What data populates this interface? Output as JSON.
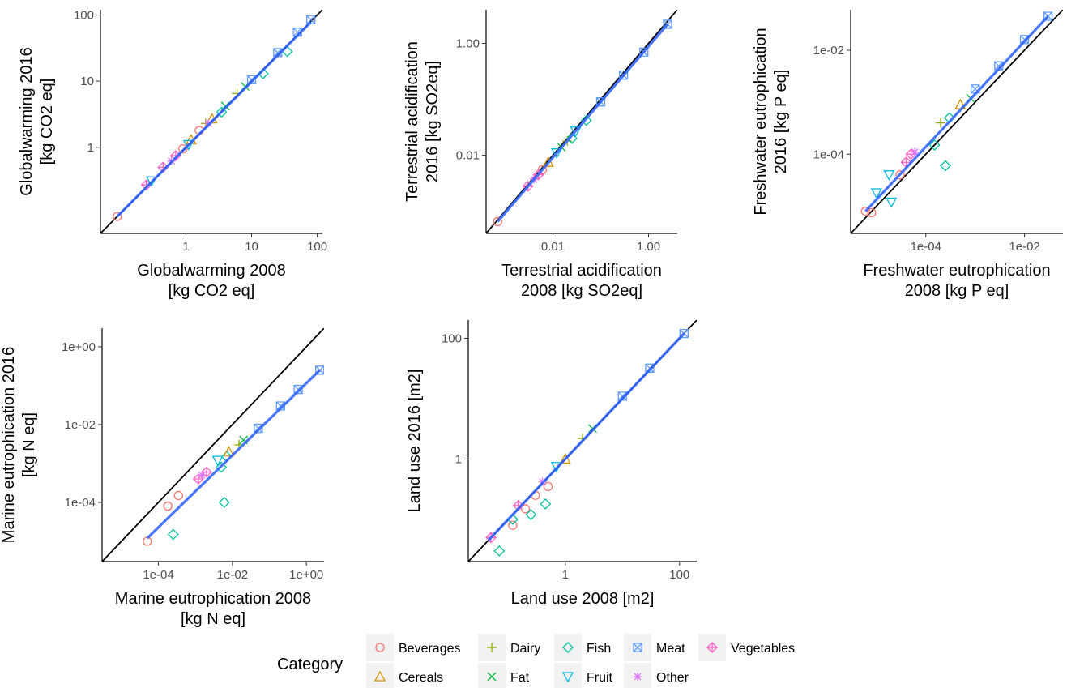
{
  "chart_data": [
    {
      "type": "scatter",
      "xlabel": [
        "Globalwarming 2008",
        "[kg CO2 eq]"
      ],
      "ylabel": [
        "Globalwarming 2016",
        "[kg CO2 eq]"
      ],
      "scale": "log10",
      "xlim": [
        0.05,
        120
      ],
      "ylim": [
        0.05,
        120
      ],
      "xticks": [
        {
          "value": 1,
          "label": "1"
        },
        {
          "value": 10,
          "label": "10"
        },
        {
          "value": 100,
          "label": "100"
        }
      ],
      "yticks": [
        {
          "value": 1,
          "label": "1"
        },
        {
          "value": 10,
          "label": "10"
        },
        {
          "value": 100,
          "label": "100"
        }
      ],
      "fit_line": {
        "from": [
          0.09,
          0.09
        ],
        "to": [
          80,
          78
        ]
      },
      "identity_line": true,
      "points": [
        {
          "category": "Beverages",
          "x": 0.09,
          "y": 0.09
        },
        {
          "category": "Beverages",
          "x": 0.9,
          "y": 0.95
        },
        {
          "category": "Beverages",
          "x": 1.6,
          "y": 1.8
        },
        {
          "category": "Vegetables",
          "x": 0.25,
          "y": 0.27
        },
        {
          "category": "Vegetables",
          "x": 0.45,
          "y": 0.5
        },
        {
          "category": "Vegetables",
          "x": 0.7,
          "y": 0.75
        },
        {
          "category": "Cereals",
          "x": 1.2,
          "y": 1.3
        },
        {
          "category": "Cereals",
          "x": 2.5,
          "y": 2.7
        },
        {
          "category": "Dairy",
          "x": 2.0,
          "y": 2.3
        },
        {
          "category": "Dairy",
          "x": 6.0,
          "y": 6.5
        },
        {
          "category": "Fat",
          "x": 4.0,
          "y": 4.2
        },
        {
          "category": "Fat",
          "x": 8.0,
          "y": 8.3
        },
        {
          "category": "Fish",
          "x": 3.5,
          "y": 3.4
        },
        {
          "category": "Fish",
          "x": 15,
          "y": 13
        },
        {
          "category": "Fish",
          "x": 35,
          "y": 28
        },
        {
          "category": "Fruit",
          "x": 0.3,
          "y": 0.31
        },
        {
          "category": "Fruit",
          "x": 1.1,
          "y": 1.1
        },
        {
          "category": "Meat",
          "x": 10,
          "y": 10.5
        },
        {
          "category": "Meat",
          "x": 25,
          "y": 27
        },
        {
          "category": "Meat",
          "x": 50,
          "y": 55
        },
        {
          "category": "Meat",
          "x": 80,
          "y": 85
        },
        {
          "category": "Other",
          "x": 0.6,
          "y": 0.62
        },
        {
          "category": "Other",
          "x": 2.2,
          "y": 2.3
        }
      ]
    },
    {
      "type": "scatter",
      "xlabel": [
        "Terrestrial acidification",
        "2008 [kg SO2eq]"
      ],
      "ylabel": [
        "Terrestrial acidification",
        "2016 [kg SO2eq]"
      ],
      "scale": "log10",
      "xlim": [
        0.0004,
        4
      ],
      "ylim": [
        0.0004,
        4
      ],
      "xticks": [
        {
          "value": 0.01,
          "label": "0.01"
        },
        {
          "value": 1,
          "label": "1.00"
        }
      ],
      "yticks": [
        {
          "value": 0.01,
          "label": "0.01"
        },
        {
          "value": 1,
          "label": "1.00"
        }
      ],
      "fit_line": {
        "from": [
          0.0007,
          0.00065
        ],
        "to": [
          2.5,
          2.2
        ]
      },
      "identity_line": true,
      "points": [
        {
          "category": "Beverages",
          "x": 0.0007,
          "y": 0.00065
        },
        {
          "category": "Beverages",
          "x": 0.006,
          "y": 0.0055
        },
        {
          "category": "Vegetables",
          "x": 0.003,
          "y": 0.0028
        },
        {
          "category": "Vegetables",
          "x": 0.005,
          "y": 0.0045
        },
        {
          "category": "Other",
          "x": 0.004,
          "y": 0.0037
        },
        {
          "category": "Cereals",
          "x": 0.008,
          "y": 0.0075
        },
        {
          "category": "Dairy",
          "x": 0.02,
          "y": 0.018
        },
        {
          "category": "Fat",
          "x": 0.015,
          "y": 0.014
        },
        {
          "category": "Fish",
          "x": 0.025,
          "y": 0.02
        },
        {
          "category": "Fish",
          "x": 0.05,
          "y": 0.042
        },
        {
          "category": "Fruit",
          "x": 0.012,
          "y": 0.011
        },
        {
          "category": "Fruit",
          "x": 0.03,
          "y": 0.027
        },
        {
          "category": "Meat",
          "x": 0.1,
          "y": 0.09
        },
        {
          "category": "Meat",
          "x": 0.3,
          "y": 0.27
        },
        {
          "category": "Meat",
          "x": 0.8,
          "y": 0.7
        },
        {
          "category": "Meat",
          "x": 2.5,
          "y": 2.2
        }
      ]
    },
    {
      "type": "scatter",
      "xlabel": [
        "Freshwater eutrophication",
        "2008 [kg P eq]"
      ],
      "ylabel": [
        "Freshwater eutrophication",
        "2016 [kg P eq]"
      ],
      "scale": "log10",
      "xlim": [
        3e-06,
        0.06
      ],
      "ylim": [
        3e-06,
        0.06
      ],
      "xticks": [
        {
          "value": 0.0001,
          "label": "1e-04"
        },
        {
          "value": 0.01,
          "label": "1e-02"
        }
      ],
      "yticks": [
        {
          "value": 0.0001,
          "label": "1e-04"
        },
        {
          "value": 0.01,
          "label": "1e-02"
        }
      ],
      "fit_line": {
        "from": [
          6e-06,
          8e-06
        ],
        "to": [
          0.03,
          0.045
        ]
      },
      "identity_line": true,
      "points": [
        {
          "category": "Beverages",
          "x": 6e-06,
          "y": 8e-06
        },
        {
          "category": "Beverages",
          "x": 8e-06,
          "y": 7.5e-06
        },
        {
          "category": "Beverages",
          "x": 3e-05,
          "y": 4e-05
        },
        {
          "category": "Fruit",
          "x": 2e-05,
          "y": 1.2e-05
        },
        {
          "category": "Fruit",
          "x": 1e-05,
          "y": 1.8e-05
        },
        {
          "category": "Fruit",
          "x": 1.8e-05,
          "y": 4e-05
        },
        {
          "category": "Fish",
          "x": 0.00015,
          "y": 0.00015
        },
        {
          "category": "Fish",
          "x": 0.00025,
          "y": 6e-05
        },
        {
          "category": "Fish",
          "x": 0.0003,
          "y": 0.0005
        },
        {
          "category": "Vegetables",
          "x": 5e-05,
          "y": 0.0001
        },
        {
          "category": "Vegetables",
          "x": 4e-05,
          "y": 7e-05
        },
        {
          "category": "Dairy",
          "x": 0.0002,
          "y": 0.0004
        },
        {
          "category": "Cereals",
          "x": 0.0005,
          "y": 0.0009
        },
        {
          "category": "Fat",
          "x": 0.0008,
          "y": 0.0012
        },
        {
          "category": "Other",
          "x": 6e-05,
          "y": 0.00011
        },
        {
          "category": "Meat",
          "x": 0.001,
          "y": 0.0018
        },
        {
          "category": "Meat",
          "x": 0.003,
          "y": 0.005
        },
        {
          "category": "Meat",
          "x": 0.01,
          "y": 0.016
        },
        {
          "category": "Meat",
          "x": 0.03,
          "y": 0.045
        }
      ]
    },
    {
      "type": "scatter",
      "xlabel": [
        "Marine eutrophication 2008",
        "[kg N eq]"
      ],
      "ylabel": [
        "Marine eutrophication 2016",
        "[kg N eq]"
      ],
      "scale": "log10",
      "xlim": [
        3e-06,
        3
      ],
      "ylim": [
        3e-06,
        3
      ],
      "xticks": [
        {
          "value": 0.0001,
          "label": "1e-04"
        },
        {
          "value": 0.01,
          "label": "1e-02"
        },
        {
          "value": 1,
          "label": "1e+00"
        }
      ],
      "yticks": [
        {
          "value": 0.0001,
          "label": "1e-04"
        },
        {
          "value": 0.01,
          "label": "1e-02"
        },
        {
          "value": 1,
          "label": "1e+00"
        }
      ],
      "fit_line": {
        "from": [
          5e-05,
          1.2e-05
        ],
        "to": [
          2.3,
          0.25
        ]
      },
      "identity_line": true,
      "points": [
        {
          "category": "Beverages",
          "x": 5e-05,
          "y": 1e-05
        },
        {
          "category": "Beverages",
          "x": 0.00018,
          "y": 8e-05
        },
        {
          "category": "Beverages",
          "x": 0.00035,
          "y": 0.00015
        },
        {
          "category": "Fish",
          "x": 0.00025,
          "y": 1.5e-05
        },
        {
          "category": "Fish",
          "x": 0.006,
          "y": 0.0001
        },
        {
          "category": "Fish",
          "x": 0.007,
          "y": 0.0015
        },
        {
          "category": "Fish",
          "x": 0.005,
          "y": 0.0008
        },
        {
          "category": "Vegetables",
          "x": 0.0012,
          "y": 0.0004
        },
        {
          "category": "Vegetables",
          "x": 0.002,
          "y": 0.0006
        },
        {
          "category": "Other",
          "x": 0.0015,
          "y": 0.0005
        },
        {
          "category": "Cereals",
          "x": 0.008,
          "y": 0.002
        },
        {
          "category": "Dairy",
          "x": 0.015,
          "y": 0.003
        },
        {
          "category": "Fat",
          "x": 0.02,
          "y": 0.004
        },
        {
          "category": "Fruit",
          "x": 0.004,
          "y": 0.0012
        },
        {
          "category": "Meat",
          "x": 0.05,
          "y": 0.008
        },
        {
          "category": "Meat",
          "x": 0.2,
          "y": 0.03
        },
        {
          "category": "Meat",
          "x": 0.6,
          "y": 0.08
        },
        {
          "category": "Meat",
          "x": 2.3,
          "y": 0.25
        }
      ]
    },
    {
      "type": "scatter",
      "xlabel": [
        "Land use 2008 [m2]"
      ],
      "ylabel": [
        "Land use 2016 [m2]"
      ],
      "scale": "log10",
      "xlim": [
        0.02,
        200
      ],
      "ylim": [
        0.02,
        200
      ],
      "xticks": [
        {
          "value": 1,
          "label": "1"
        },
        {
          "value": 100,
          "label": "100"
        }
      ],
      "yticks": [
        {
          "value": 1,
          "label": "1"
        },
        {
          "value": 100,
          "label": "100"
        }
      ],
      "fit_line": {
        "from": [
          0.045,
          0.045
        ],
        "to": [
          120,
          120
        ]
      },
      "identity_line": true,
      "points": [
        {
          "category": "Beverages",
          "x": 0.12,
          "y": 0.08
        },
        {
          "category": "Beverages",
          "x": 0.2,
          "y": 0.15
        },
        {
          "category": "Beverages",
          "x": 0.3,
          "y": 0.25
        },
        {
          "category": "Beverages",
          "x": 0.5,
          "y": 0.35
        },
        {
          "category": "Fish",
          "x": 0.07,
          "y": 0.03
        },
        {
          "category": "Fish",
          "x": 0.12,
          "y": 0.1
        },
        {
          "category": "Fish",
          "x": 0.25,
          "y": 0.12
        },
        {
          "category": "Fish",
          "x": 0.45,
          "y": 0.18
        },
        {
          "category": "Vegetables",
          "x": 0.05,
          "y": 0.05
        },
        {
          "category": "Vegetables",
          "x": 0.15,
          "y": 0.17
        },
        {
          "category": "Cereals",
          "x": 1.0,
          "y": 1.0
        },
        {
          "category": "Dairy",
          "x": 2.0,
          "y": 2.2
        },
        {
          "category": "Fat",
          "x": 3.0,
          "y": 3.2
        },
        {
          "category": "Fruit",
          "x": 0.7,
          "y": 0.75
        },
        {
          "category": "Other",
          "x": 0.4,
          "y": 0.42
        },
        {
          "category": "Meat",
          "x": 10,
          "y": 11
        },
        {
          "category": "Meat",
          "x": 30,
          "y": 32
        },
        {
          "category": "Meat",
          "x": 120,
          "y": 120
        }
      ]
    }
  ],
  "legend": {
    "title": "Category",
    "items": [
      {
        "label": "Beverages",
        "shape": "circle",
        "color": "#F8766D"
      },
      {
        "label": "Cereals",
        "shape": "triangle",
        "color": "#D39200"
      },
      {
        "label": "Dairy",
        "shape": "plus",
        "color": "#93AA00"
      },
      {
        "label": "Fat",
        "shape": "cross",
        "color": "#00BA38"
      },
      {
        "label": "Fish",
        "shape": "diamond",
        "color": "#00C19F"
      },
      {
        "label": "Fruit",
        "shape": "triangle-down",
        "color": "#00B9E3"
      },
      {
        "label": "Meat",
        "shape": "square-cross",
        "color": "#619CFF"
      },
      {
        "label": "Other",
        "shape": "asterisk",
        "color": "#DB72FB"
      },
      {
        "label": "Vegetables",
        "shape": "diamond-plus",
        "color": "#FF61C3"
      }
    ]
  },
  "colors": {
    "fit_line": "#3366FF",
    "identity_line": "#000000",
    "legend_key_bg": "#F2F2F2"
  }
}
